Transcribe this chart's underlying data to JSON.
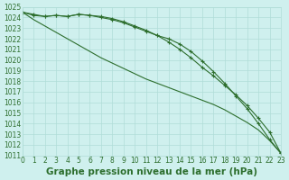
{
  "title": "Graphe pression niveau de la mer (hPa)",
  "background_color": "#cff0ee",
  "grid_color": "#b0ddd8",
  "line_color": "#2d6e2d",
  "x_values": [
    0,
    1,
    2,
    3,
    4,
    5,
    6,
    7,
    8,
    9,
    10,
    11,
    12,
    13,
    14,
    15,
    16,
    17,
    18,
    19,
    20,
    21,
    22,
    23
  ],
  "line1_y": [
    1024.5,
    1024.3,
    1024.1,
    1024.2,
    1024.1,
    1024.3,
    1024.2,
    1024.1,
    1023.9,
    1023.6,
    1023.2,
    1022.8,
    1022.3,
    1021.7,
    1021.0,
    1020.2,
    1019.3,
    1018.5,
    1017.6,
    1016.7,
    1015.7,
    1014.5,
    1013.2,
    1011.2
  ],
  "line2_y": [
    1024.5,
    1024.2,
    1024.1,
    1024.2,
    1024.1,
    1024.3,
    1024.2,
    1024.0,
    1023.8,
    1023.5,
    1023.1,
    1022.7,
    1022.3,
    1022.0,
    1021.5,
    1020.8,
    1019.9,
    1018.9,
    1017.8,
    1016.6,
    1015.4,
    1014.0,
    1012.5,
    1011.2
  ],
  "line3_y": [
    1024.5,
    1023.8,
    1023.2,
    1022.6,
    1022.0,
    1021.4,
    1020.8,
    1020.2,
    1019.7,
    1019.2,
    1018.7,
    1018.2,
    1017.8,
    1017.4,
    1017.0,
    1016.6,
    1016.2,
    1015.8,
    1015.3,
    1014.7,
    1014.1,
    1013.4,
    1012.4,
    1011.2
  ],
  "ylim_min": 1011,
  "ylim_max": 1025,
  "xlim_min": 0,
  "xlim_max": 23,
  "ytick_step": 1,
  "title_fontsize": 7.5,
  "tick_fontsize": 5.5,
  "marker": "+"
}
